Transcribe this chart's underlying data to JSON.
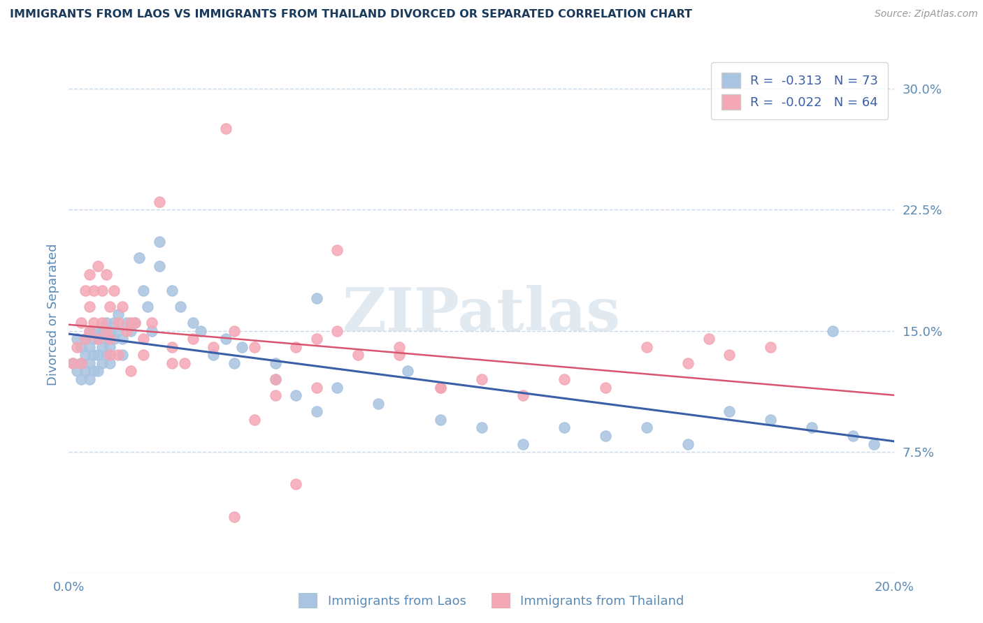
{
  "title": "IMMIGRANTS FROM LAOS VS IMMIGRANTS FROM THAILAND DIVORCED OR SEPARATED CORRELATION CHART",
  "source": "Source: ZipAtlas.com",
  "ylabel": "Divorced or Separated",
  "yticks": [
    0.0,
    0.075,
    0.15,
    0.225,
    0.3
  ],
  "ytick_labels": [
    "",
    "7.5%",
    "15.0%",
    "22.5%",
    "30.0%"
  ],
  "xlim": [
    0.0,
    0.2
  ],
  "ylim": [
    0.0,
    0.32
  ],
  "color_laos": "#a8c4e0",
  "color_thailand": "#f4a7b5",
  "color_laos_line": "#3a5fa8",
  "color_thailand_line": "#d9546e",
  "background_color": "#ffffff",
  "grid_color": "#c8d8e8",
  "title_color": "#1a3a5c",
  "axis_label_color": "#5b8ab5",
  "tick_color": "#5b8ab5",
  "laos_x": [
    0.001,
    0.002,
    0.002,
    0.003,
    0.003,
    0.003,
    0.004,
    0.004,
    0.004,
    0.005,
    0.005,
    0.005,
    0.005,
    0.006,
    0.006,
    0.006,
    0.007,
    0.007,
    0.007,
    0.007,
    0.008,
    0.008,
    0.008,
    0.009,
    0.009,
    0.009,
    0.01,
    0.01,
    0.01,
    0.011,
    0.011,
    0.012,
    0.012,
    0.013,
    0.013,
    0.014,
    0.015,
    0.016,
    0.017,
    0.018,
    0.019,
    0.02,
    0.022,
    0.025,
    0.027,
    0.03,
    0.032,
    0.038,
    0.042,
    0.05,
    0.055,
    0.06,
    0.065,
    0.075,
    0.082,
    0.09,
    0.1,
    0.11,
    0.12,
    0.13,
    0.14,
    0.15,
    0.16,
    0.17,
    0.18,
    0.185,
    0.19,
    0.195,
    0.05,
    0.06,
    0.022,
    0.035,
    0.04
  ],
  "laos_y": [
    0.13,
    0.125,
    0.145,
    0.13,
    0.12,
    0.14,
    0.135,
    0.125,
    0.145,
    0.14,
    0.13,
    0.15,
    0.12,
    0.145,
    0.135,
    0.125,
    0.15,
    0.145,
    0.135,
    0.125,
    0.15,
    0.14,
    0.13,
    0.145,
    0.155,
    0.135,
    0.14,
    0.15,
    0.13,
    0.155,
    0.145,
    0.15,
    0.16,
    0.145,
    0.135,
    0.155,
    0.15,
    0.155,
    0.195,
    0.175,
    0.165,
    0.15,
    0.19,
    0.175,
    0.165,
    0.155,
    0.15,
    0.145,
    0.14,
    0.12,
    0.11,
    0.1,
    0.115,
    0.105,
    0.125,
    0.095,
    0.09,
    0.08,
    0.09,
    0.085,
    0.09,
    0.08,
    0.1,
    0.095,
    0.09,
    0.15,
    0.085,
    0.08,
    0.13,
    0.17,
    0.205,
    0.135,
    0.13
  ],
  "thailand_x": [
    0.001,
    0.002,
    0.003,
    0.003,
    0.004,
    0.004,
    0.005,
    0.005,
    0.005,
    0.006,
    0.006,
    0.007,
    0.007,
    0.008,
    0.008,
    0.009,
    0.009,
    0.01,
    0.01,
    0.011,
    0.012,
    0.013,
    0.014,
    0.015,
    0.016,
    0.018,
    0.02,
    0.022,
    0.025,
    0.028,
    0.03,
    0.035,
    0.04,
    0.045,
    0.05,
    0.055,
    0.06,
    0.065,
    0.07,
    0.08,
    0.09,
    0.1,
    0.11,
    0.12,
    0.13,
    0.14,
    0.15,
    0.16,
    0.17,
    0.012,
    0.015,
    0.018,
    0.01,
    0.025,
    0.04,
    0.06,
    0.08,
    0.09,
    0.038,
    0.045,
    0.05,
    0.055,
    0.065,
    0.155
  ],
  "thailand_y": [
    0.13,
    0.14,
    0.13,
    0.155,
    0.145,
    0.175,
    0.15,
    0.165,
    0.185,
    0.155,
    0.175,
    0.145,
    0.19,
    0.155,
    0.175,
    0.15,
    0.185,
    0.165,
    0.145,
    0.175,
    0.155,
    0.165,
    0.15,
    0.155,
    0.155,
    0.145,
    0.155,
    0.23,
    0.14,
    0.13,
    0.145,
    0.14,
    0.15,
    0.14,
    0.12,
    0.14,
    0.145,
    0.15,
    0.135,
    0.14,
    0.115,
    0.12,
    0.11,
    0.12,
    0.115,
    0.14,
    0.13,
    0.135,
    0.14,
    0.135,
    0.125,
    0.135,
    0.135,
    0.13,
    0.035,
    0.115,
    0.135,
    0.115,
    0.275,
    0.095,
    0.11,
    0.055,
    0.2,
    0.145
  ]
}
